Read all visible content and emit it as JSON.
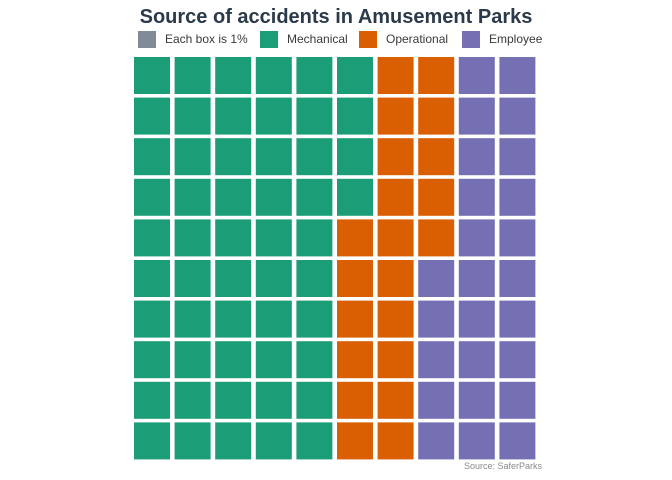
{
  "chart_data": {
    "type": "waffle",
    "title": "Source of accidents in Amusement Parks",
    "legend": [
      {
        "label": "Each box is 1%",
        "color": "#7f8c97"
      },
      {
        "label": "Mechanical",
        "color": "#1b9e77"
      },
      {
        "label": "Operational",
        "color": "#d95f02"
      },
      {
        "label": "Employee",
        "color": "#7570b3"
      }
    ],
    "grid": {
      "rows": 10,
      "cols": 10
    },
    "categories": [
      "Mechanical",
      "Operational",
      "Employee"
    ],
    "values": [
      54,
      21,
      25
    ],
    "colors": {
      "Mechanical": "#1b9e77",
      "Operational": "#d95f02",
      "Employee": "#7570b3"
    },
    "source": "Source: SaferParks"
  }
}
